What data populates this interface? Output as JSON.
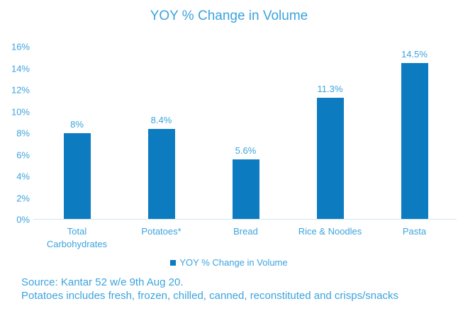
{
  "chart_data": {
    "type": "bar",
    "title": "YOY % Change in Volume",
    "categories": [
      "Total Carbohydrates",
      "Potatoes*",
      "Bread",
      "Rice & Noodles",
      "Pasta"
    ],
    "values": [
      8,
      8.4,
      5.6,
      11.3,
      14.5
    ],
    "value_labels": [
      "8%",
      "8.4%",
      "5.6%",
      "11.3%",
      "14.5%"
    ],
    "ylim": [
      0,
      16
    ],
    "ytick_step": 2,
    "ytick_labels": [
      "0%",
      "2%",
      "4%",
      "6%",
      "8%",
      "10%",
      "12%",
      "14%",
      "16%"
    ],
    "grid": false,
    "legend": {
      "label": "YOY % Change in Volume",
      "position": "bottom",
      "marker_color": "#0c7bc0"
    },
    "bar_color": "#0c7bc0",
    "text_color": "#3ba3de",
    "axis_line_color": "#d3e5f2"
  },
  "footer": {
    "source_line": "Source: Kantar 52 w/e 9th Aug 20.",
    "note_line": "Potatoes includes fresh, frozen, chilled, canned, reconstituted and crisps/snacks"
  }
}
